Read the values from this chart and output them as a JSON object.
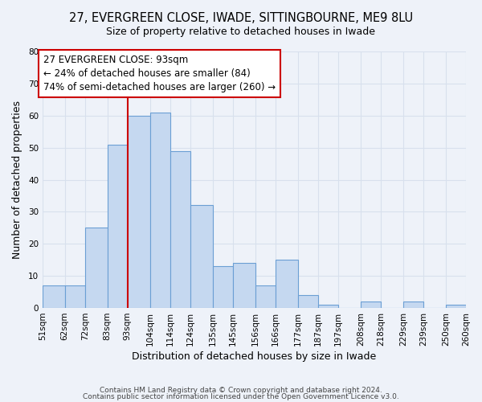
{
  "title": "27, EVERGREEN CLOSE, IWADE, SITTINGBOURNE, ME9 8LU",
  "subtitle": "Size of property relative to detached houses in Iwade",
  "xlabel": "Distribution of detached houses by size in Iwade",
  "ylabel": "Number of detached properties",
  "bin_labels": [
    "51sqm",
    "62sqm",
    "72sqm",
    "83sqm",
    "93sqm",
    "104sqm",
    "114sqm",
    "124sqm",
    "135sqm",
    "145sqm",
    "156sqm",
    "166sqm",
    "177sqm",
    "187sqm",
    "197sqm",
    "208sqm",
    "218sqm",
    "229sqm",
    "239sqm",
    "250sqm",
    "260sqm"
  ],
  "bin_edges": [
    51,
    62,
    72,
    83,
    93,
    104,
    114,
    124,
    135,
    145,
    156,
    166,
    177,
    187,
    197,
    208,
    218,
    229,
    239,
    250,
    260
  ],
  "counts": [
    7,
    7,
    25,
    51,
    60,
    61,
    49,
    32,
    13,
    14,
    7,
    15,
    4,
    1,
    0,
    2,
    0,
    2,
    0,
    1
  ],
  "bar_color": "#c5d8f0",
  "bar_edge_color": "#6b9fd4",
  "vline_x": 93,
  "vline_color": "#cc0000",
  "annotation_line1": "27 EVERGREEN CLOSE: 93sqm",
  "annotation_line2": "← 24% of detached houses are smaller (84)",
  "annotation_line3": "74% of semi-detached houses are larger (260) →",
  "annotation_box_color": "#ffffff",
  "annotation_box_edge_color": "#cc0000",
  "ylim": [
    0,
    80
  ],
  "yticks": [
    0,
    10,
    20,
    30,
    40,
    50,
    60,
    70,
    80
  ],
  "footer_line1": "Contains HM Land Registry data © Crown copyright and database right 2024.",
  "footer_line2": "Contains public sector information licensed under the Open Government Licence v3.0.",
  "background_color": "#eef2f9",
  "grid_color": "#d8e0ed",
  "title_fontsize": 10.5,
  "subtitle_fontsize": 9,
  "axis_label_fontsize": 9,
  "tick_fontsize": 7.5,
  "annotation_fontsize": 8.5,
  "footer_fontsize": 6.5
}
